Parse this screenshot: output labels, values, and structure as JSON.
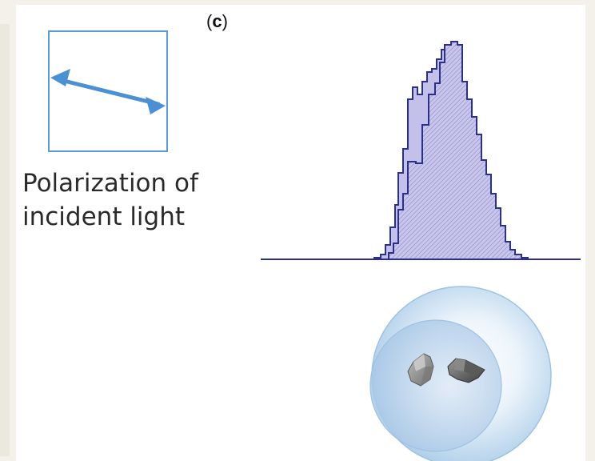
{
  "panel": {
    "label_open": "(",
    "label_letter": "c",
    "label_close": ")"
  },
  "polarization": {
    "line1": "Polarization of",
    "line2": "incident light"
  },
  "colors": {
    "arrow": "#4a90d2",
    "box_border": "#5b9bd5",
    "histogram_stroke": "#2b2f8f",
    "histogram_fill": "#b9b6e6",
    "sphere_outer": "#a9cbe8",
    "sphere_inner": "#c8def0"
  }
}
